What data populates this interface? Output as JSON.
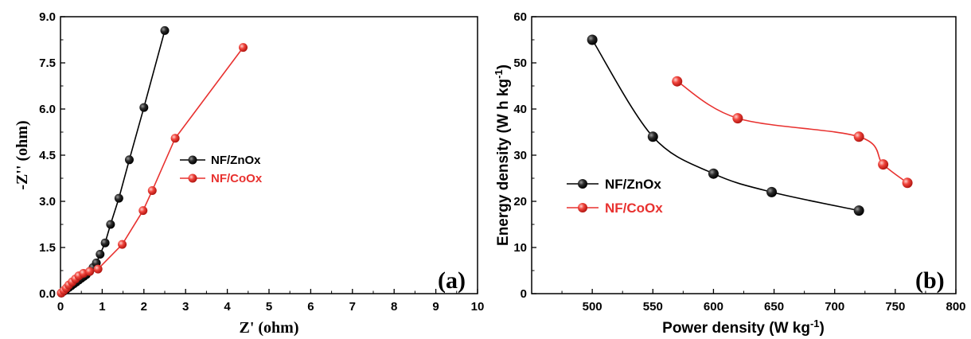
{
  "chart_data": [
    {
      "type": "scatter",
      "panel_label": "(a)",
      "xlabel": "Z' (ohm)",
      "ylabel": "-Z'' (ohm)",
      "xlim": [
        0,
        10
      ],
      "ylim": [
        0,
        9
      ],
      "x_ticks": [
        "0",
        "1",
        "2",
        "3",
        "4",
        "5",
        "6",
        "7",
        "8",
        "9",
        "10"
      ],
      "y_ticks": [
        "0.0",
        "1.5",
        "3.0",
        "4.5",
        "6.0",
        "7.5",
        "9.0"
      ],
      "grid": false,
      "legend_position": "center-right",
      "series": [
        {
          "name": "NF/ZnOx",
          "color": "#000000",
          "x": [
            0.02,
            0.08,
            0.14,
            0.2,
            0.26,
            0.32,
            0.38,
            0.44,
            0.5,
            0.56,
            0.62,
            0.7,
            0.78,
            0.86,
            0.95,
            1.07,
            1.2,
            1.4,
            1.65,
            2.0,
            2.5
          ],
          "y": [
            0.02,
            0.08,
            0.14,
            0.2,
            0.26,
            0.32,
            0.38,
            0.44,
            0.5,
            0.56,
            0.62,
            0.72,
            0.85,
            1.0,
            1.28,
            1.65,
            2.25,
            3.1,
            4.35,
            6.05,
            8.55
          ]
        },
        {
          "name": "NF/CoOx",
          "color": "#e8312f",
          "x": [
            0.02,
            0.08,
            0.14,
            0.2,
            0.28,
            0.36,
            0.44,
            0.55,
            0.7,
            0.9,
            1.48,
            1.98,
            2.2,
            2.75,
            4.38
          ],
          "y": [
            0.02,
            0.1,
            0.18,
            0.28,
            0.38,
            0.48,
            0.58,
            0.66,
            0.72,
            0.8,
            1.6,
            2.7,
            3.35,
            5.05,
            8.0
          ]
        }
      ]
    },
    {
      "type": "line",
      "panel_label": "(b)",
      "xlabel": "Power density (W kg",
      "xlabel_sup": "-1",
      "xlabel_end": ")",
      "ylabel": "Energy density (W h kg",
      "ylabel_sup": "-1",
      "ylabel_end": ")",
      "xlim": [
        450,
        800
      ],
      "ylim": [
        0,
        60
      ],
      "x_ticks": [
        "500",
        "550",
        "600",
        "650",
        "700",
        "750",
        "800"
      ],
      "y_ticks": [
        "0",
        "10",
        "20",
        "30",
        "40",
        "50",
        "60"
      ],
      "grid": false,
      "legend_position": "left-center",
      "series": [
        {
          "name": "NF/ZnOx",
          "color": "#000000",
          "x": [
            500,
            550,
            600,
            648,
            720
          ],
          "y": [
            55,
            34,
            26,
            22,
            18
          ]
        },
        {
          "name": "NF/CoOx",
          "color": "#e8312f",
          "x": [
            570,
            620,
            720,
            740,
            760
          ],
          "y": [
            46,
            38,
            34,
            28,
            24
          ]
        }
      ]
    }
  ]
}
